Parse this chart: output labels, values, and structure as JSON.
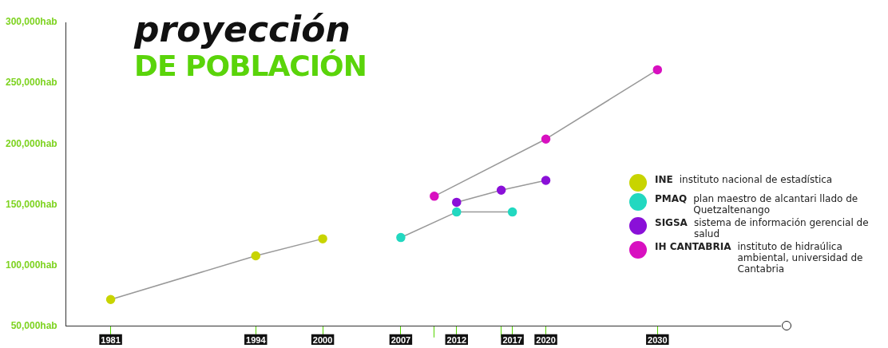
{
  "chart_data": {
    "type": "line",
    "title": "proyección",
    "subtitle": "DE POBLACIÓN",
    "xlim": [
      1977,
      2041
    ],
    "xticks": [
      {
        "value": 1981,
        "label": "1981"
      },
      {
        "value": 1994,
        "label": "1994"
      },
      {
        "value": 2000,
        "label": "2000"
      },
      {
        "value": 2007,
        "label": "2007"
      },
      {
        "value": 2010,
        "label": null
      },
      {
        "value": 2012,
        "label": "2012"
      },
      {
        "value": 2016,
        "label": null
      },
      {
        "value": 2017,
        "label": "2017"
      },
      {
        "value": 2020,
        "label": "2020"
      },
      {
        "value": 2030,
        "label": "2030"
      }
    ],
    "ylim": [
      50000,
      300000
    ],
    "yticks": [
      {
        "value": 50000,
        "label": "50,000hab"
      },
      {
        "value": 100000,
        "label": "100,000hab"
      },
      {
        "value": 150000,
        "label": "150,000hab"
      },
      {
        "value": 200000,
        "label": "200,000hab"
      },
      {
        "value": 250000,
        "label": "250,000hab"
      },
      {
        "value": 300000,
        "label": "300,000hab"
      }
    ],
    "series": [
      {
        "name": "INE",
        "color": "#c8d400",
        "x": [
          1981,
          1994,
          2000
        ],
        "values": [
          72000,
          108000,
          122000
        ]
      },
      {
        "name": "PMAQ",
        "color": "#22d8c0",
        "x": [
          2007,
          2012,
          2017
        ],
        "values": [
          123000,
          144000,
          144000
        ]
      },
      {
        "name": "SIGSA",
        "color": "#8a10d8",
        "x": [
          2012,
          2016,
          2020
        ],
        "values": [
          152000,
          162000,
          170000
        ]
      },
      {
        "name": "IH CANTABRIA",
        "color": "#d810c0",
        "x": [
          2010,
          2020,
          2030
        ],
        "values": [
          157000,
          204000,
          261000
        ]
      }
    ],
    "annotations": [
      "instituto nacional de estadística",
      "plan maestro de alcantari llado de Quetzaltenango",
      "sistema de información gerencial de salud",
      "instituto de hidraúlica ambiental, universidad de Cantabria"
    ],
    "marker": "circle",
    "line_style": "solid",
    "grid": false,
    "legend": "right"
  }
}
